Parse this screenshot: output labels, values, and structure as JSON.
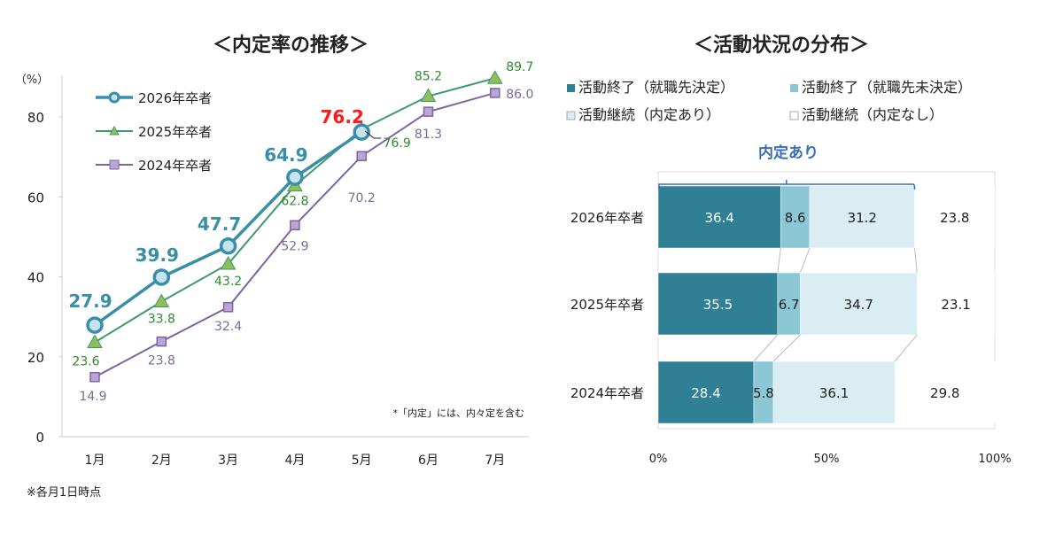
{
  "chart_data": [
    {
      "type": "line",
      "title": "＜内定率の推移＞",
      "ylabel": "（%）",
      "ylim": [
        0,
        90
      ],
      "yticks": [
        "0",
        "20",
        "40",
        "60",
        "80"
      ],
      "categories": [
        "1月",
        "2月",
        "3月",
        "4月",
        "5月",
        "6月",
        "7月"
      ],
      "legend_position": "top-left",
      "series": [
        {
          "name": "2026年卒者",
          "values": [
            27.9,
            39.9,
            47.7,
            64.9,
            76.2,
            null,
            null
          ],
          "color": "#3a8fa8",
          "marker": "circle"
        },
        {
          "name": "2025年卒者",
          "values": [
            23.6,
            33.8,
            43.2,
            62.8,
            76.9,
            85.2,
            89.7
          ],
          "color": "#3e9a6e",
          "marker": "triangle"
        },
        {
          "name": "2024年卒者",
          "values": [
            14.9,
            23.8,
            32.4,
            52.9,
            70.2,
            81.3,
            86.0
          ],
          "color": "#7d64a3",
          "marker": "square"
        }
      ],
      "highlight_color": "#ff1a1a",
      "note": "*「内定」には、内々定を含む",
      "footnote": "※各月1日時点"
    },
    {
      "type": "bar",
      "orientation": "horizontal-stacked-100",
      "title": "＜活動状況の分布＞",
      "categories": [
        "2026年卒者",
        "2025年卒者",
        "2024年卒者"
      ],
      "xticks": [
        "0%",
        "50%",
        "100%"
      ],
      "legend_position": "top",
      "series": [
        {
          "name": "活動終了（就職先決定）",
          "values": [
            36.4,
            35.5,
            28.4
          ],
          "color": "#2f7f95"
        },
        {
          "name": "活動終了（就職先未決定）",
          "values": [
            8.6,
            6.7,
            5.8
          ],
          "color": "#8cc7d6"
        },
        {
          "name": "活動継続（内定あり）",
          "values": [
            31.2,
            34.7,
            36.1
          ],
          "color": "#d9edf3"
        },
        {
          "name": "活動継続（内定なし）",
          "values": [
            23.8,
            23.1,
            29.8
          ],
          "color": "#ffffff"
        }
      ],
      "bracket_label": "内定あり",
      "bracket_color": "#3a6eb5"
    }
  ]
}
